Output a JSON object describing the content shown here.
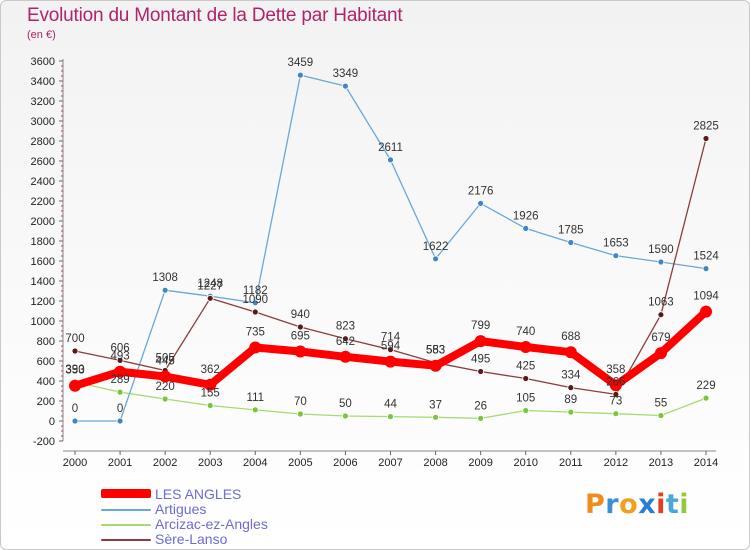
{
  "title": "Evolution du Montant de la Dette par Habitant",
  "subtitle": "(en €)",
  "logo": {
    "text": "Proxiti",
    "letter_colors": [
      "#f08c1e",
      "#3c8ed8",
      "#f0a01e",
      "#2c7dd8",
      "#e0401e",
      "#4aa8d8",
      "#96c83c"
    ]
  },
  "chart_data": {
    "type": "line",
    "title": "Evolution du Montant de la Dette par Habitant",
    "subtitle": "(en €)",
    "x": [
      2000,
      2001,
      2002,
      2003,
      2004,
      2005,
      2006,
      2007,
      2008,
      2009,
      2010,
      2011,
      2012,
      2013,
      2014
    ],
    "ylim": [
      -200,
      3600
    ],
    "yticks": [
      -200,
      0,
      200,
      400,
      600,
      800,
      1000,
      1200,
      1400,
      1600,
      1800,
      2000,
      2200,
      2400,
      2600,
      2800,
      3000,
      3200,
      3400,
      3600
    ],
    "grid": false,
    "legend_position": "bottom-left",
    "series": [
      {
        "name": "LES ANGLES",
        "color": "#ff0000",
        "marker_color": "#ff0000",
        "width": "thick",
        "values": [
          353,
          493,
          445,
          362,
          735,
          695,
          642,
          594,
          553,
          799,
          740,
          688,
          358,
          679,
          1094
        ],
        "labels": [
          "353",
          "493",
          "445",
          "362",
          "735",
          "695",
          "642",
          "594",
          "553",
          "799",
          "740",
          "688",
          "358",
          "679",
          "1094"
        ]
      },
      {
        "name": "Artigues",
        "color": "#6aa8d8",
        "marker_color": "#3f86c6",
        "width": "thin",
        "values": [
          0,
          0,
          1308,
          1248,
          1182,
          3459,
          3349,
          2611,
          1622,
          2176,
          1926,
          1785,
          1653,
          1590,
          1524
        ],
        "labels": [
          "0",
          "0",
          "1308",
          "1248",
          "1182",
          "3459",
          "3349",
          "2611",
          "1622",
          "2176",
          "1926",
          "1785",
          "1653",
          "1590",
          "1524"
        ]
      },
      {
        "name": "Arcizac-ez-Angles",
        "color": "#a6dc6c",
        "marker_color": "#7cc43a",
        "width": "thin",
        "values": [
          390,
          289,
          220,
          155,
          111,
          70,
          50,
          44,
          37,
          26,
          105,
          89,
          73,
          55,
          229
        ],
        "labels": [
          "390",
          "289",
          "220",
          "155",
          "111",
          "70",
          "50",
          "44",
          "37",
          "26",
          "105",
          "89",
          "73",
          "55",
          "229"
        ]
      },
      {
        "name": "Sère-Lanso",
        "color": "#8c3c3c",
        "marker_color": "#5a1a1a",
        "width": "thin",
        "values": [
          700,
          606,
          505,
          1227,
          1090,
          940,
          823,
          714,
          583,
          495,
          425,
          334,
          266,
          1063,
          2825
        ],
        "labels": [
          "700",
          "606",
          "505",
          "1227",
          "1090",
          "940",
          "823",
          "714",
          "583",
          "495",
          "425",
          "334",
          "266",
          "1063",
          "2825"
        ]
      }
    ]
  }
}
